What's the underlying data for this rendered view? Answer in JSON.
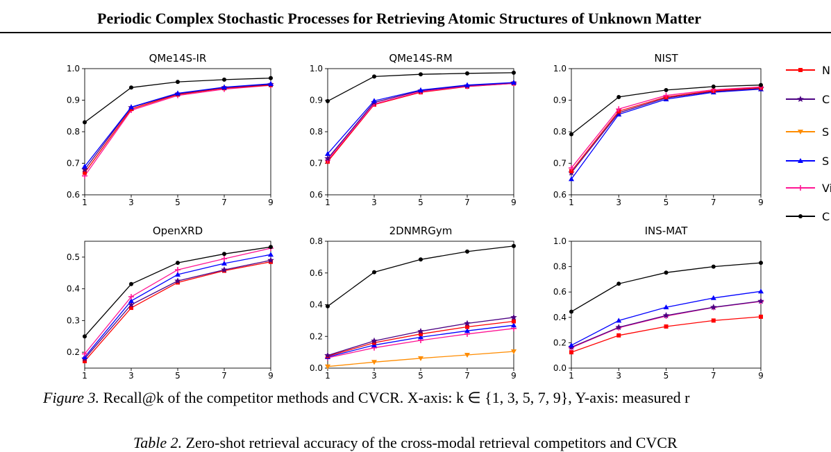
{
  "header": {
    "title": "Periodic Complex Stochastic Processes for Retrieving Atomic Structures of Unknown Matter"
  },
  "caption": {
    "label": "Figure 3.",
    "text": "Recall@k of the competitor methods and CVCR. X-axis: k ∈ {1, 3, 5, 7, 9}, Y-axis: measured r"
  },
  "table_caption": {
    "label": "Table 2.",
    "text": "Zero-shot retrieval accuracy of the cross-modal retrieval competitors and CVCR"
  },
  "legend": [
    {
      "label": "N",
      "color": "#ff0000",
      "marker": "square"
    },
    {
      "label": "C",
      "color": "#4b0082",
      "marker": "star"
    },
    {
      "label": "S",
      "color": "#ff8c00",
      "marker": "tri-down"
    },
    {
      "label": "S",
      "color": "#0000ff",
      "marker": "tri-up"
    },
    {
      "label": "Vi",
      "color": "#ff1493",
      "marker": "plus"
    },
    {
      "label": "C",
      "color": "#000000",
      "marker": "circle"
    }
  ],
  "chart_data": [
    {
      "type": "line",
      "title": "QMe14S-IR",
      "x": [
        1,
        3,
        5,
        7,
        9
      ],
      "ylim": [
        0.6,
        1.0
      ],
      "yticks": [
        "0.6",
        "0.7",
        "0.8",
        "0.9",
        "1.0"
      ],
      "series": [
        {
          "legend_index": 5,
          "color": "#000000",
          "marker": "circle",
          "values": [
            0.83,
            0.94,
            0.958,
            0.965,
            0.97
          ]
        },
        {
          "legend_index": 3,
          "color": "#0000ff",
          "marker": "tri-up",
          "values": [
            0.69,
            0.878,
            0.922,
            0.941,
            0.952
          ]
        },
        {
          "legend_index": 1,
          "color": "#4b0082",
          "marker": "star",
          "values": [
            0.68,
            0.877,
            0.92,
            0.94,
            0.95
          ]
        },
        {
          "legend_index": 0,
          "color": "#ff0000",
          "marker": "square",
          "values": [
            0.67,
            0.872,
            0.918,
            0.938,
            0.948
          ]
        },
        {
          "legend_index": 4,
          "color": "#ff1493",
          "marker": "plus",
          "values": [
            0.66,
            0.868,
            0.915,
            0.935,
            0.947
          ]
        }
      ]
    },
    {
      "type": "line",
      "title": "QMe14S-RM",
      "x": [
        1,
        3,
        5,
        7,
        9
      ],
      "ylim": [
        0.6,
        1.0
      ],
      "yticks": [
        "0.6",
        "0.7",
        "0.8",
        "0.9",
        "1.0"
      ],
      "series": [
        {
          "legend_index": 5,
          "color": "#000000",
          "marker": "circle",
          "values": [
            0.897,
            0.975,
            0.982,
            0.985,
            0.987
          ]
        },
        {
          "legend_index": 3,
          "color": "#0000ff",
          "marker": "tri-up",
          "values": [
            0.73,
            0.898,
            0.932,
            0.948,
            0.956
          ]
        },
        {
          "legend_index": 1,
          "color": "#4b0082",
          "marker": "star",
          "values": [
            0.715,
            0.893,
            0.93,
            0.946,
            0.955
          ]
        },
        {
          "legend_index": 4,
          "color": "#ff1493",
          "marker": "plus",
          "values": [
            0.71,
            0.888,
            0.927,
            0.944,
            0.953
          ]
        },
        {
          "legend_index": 0,
          "color": "#ff0000",
          "marker": "square",
          "values": [
            0.705,
            0.886,
            0.925,
            0.943,
            0.953
          ]
        }
      ]
    },
    {
      "type": "line",
      "title": "NIST",
      "x": [
        1,
        3,
        5,
        7,
        9
      ],
      "ylim": [
        0.6,
        1.0
      ],
      "yticks": [
        "0.6",
        "0.7",
        "0.8",
        "0.9",
        "1.0"
      ],
      "series": [
        {
          "legend_index": 5,
          "color": "#000000",
          "marker": "circle",
          "values": [
            0.792,
            0.91,
            0.932,
            0.943,
            0.948
          ]
        },
        {
          "legend_index": 4,
          "color": "#ff1493",
          "marker": "plus",
          "values": [
            0.685,
            0.872,
            0.915,
            0.933,
            0.942
          ]
        },
        {
          "legend_index": 0,
          "color": "#ff0000",
          "marker": "square",
          "values": [
            0.675,
            0.865,
            0.91,
            0.93,
            0.94
          ]
        },
        {
          "legend_index": 1,
          "color": "#4b0082",
          "marker": "star",
          "values": [
            0.67,
            0.86,
            0.907,
            0.928,
            0.937
          ]
        },
        {
          "legend_index": 3,
          "color": "#0000ff",
          "marker": "tri-up",
          "values": [
            0.65,
            0.855,
            0.903,
            0.925,
            0.935
          ]
        }
      ]
    },
    {
      "type": "line",
      "title": "OpenXRD",
      "x": [
        1,
        3,
        5,
        7,
        9
      ],
      "ylim": [
        0.15,
        0.55
      ],
      "yticks": [
        "0.2",
        "0.3",
        "0.4",
        "0.5"
      ],
      "ytick_values": [
        0.2,
        0.3,
        0.4,
        0.5
      ],
      "series": [
        {
          "legend_index": 5,
          "color": "#000000",
          "marker": "circle",
          "values": [
            0.25,
            0.415,
            0.482,
            0.51,
            0.532
          ]
        },
        {
          "legend_index": 4,
          "color": "#ff1493",
          "marker": "plus",
          "values": [
            0.195,
            0.375,
            0.46,
            0.495,
            0.528
          ]
        },
        {
          "legend_index": 3,
          "color": "#0000ff",
          "marker": "tri-up",
          "values": [
            0.185,
            0.362,
            0.445,
            0.48,
            0.508
          ]
        },
        {
          "legend_index": 1,
          "color": "#4b0082",
          "marker": "star",
          "values": [
            0.18,
            0.35,
            0.425,
            0.46,
            0.49
          ]
        },
        {
          "legend_index": 0,
          "color": "#ff0000",
          "marker": "square",
          "values": [
            0.172,
            0.34,
            0.42,
            0.457,
            0.485
          ]
        }
      ]
    },
    {
      "type": "line",
      "title": "2DNMRGym",
      "x": [
        1,
        3,
        5,
        7,
        9
      ],
      "ylim": [
        0.0,
        0.8
      ],
      "yticks": [
        "0.0",
        "0.2",
        "0.4",
        "0.6",
        "0.8"
      ],
      "series": [
        {
          "legend_index": 5,
          "color": "#000000",
          "marker": "circle",
          "values": [
            0.39,
            0.605,
            0.685,
            0.735,
            0.77
          ]
        },
        {
          "legend_index": 1,
          "color": "#4b0082",
          "marker": "star",
          "values": [
            0.08,
            0.172,
            0.232,
            0.282,
            0.32
          ]
        },
        {
          "legend_index": 0,
          "color": "#ff0000",
          "marker": "square",
          "values": [
            0.075,
            0.16,
            0.215,
            0.26,
            0.295
          ]
        },
        {
          "legend_index": 3,
          "color": "#0000ff",
          "marker": "tri-up",
          "values": [
            0.07,
            0.145,
            0.195,
            0.235,
            0.27
          ]
        },
        {
          "legend_index": 4,
          "color": "#ff1493",
          "marker": "plus",
          "values": [
            0.065,
            0.128,
            0.175,
            0.215,
            0.25
          ]
        },
        {
          "legend_index": 2,
          "color": "#ff8c00",
          "marker": "tri-down",
          "values": [
            0.01,
            0.038,
            0.062,
            0.083,
            0.105
          ]
        }
      ]
    },
    {
      "type": "line",
      "title": "INS-MAT",
      "x": [
        1,
        3,
        5,
        7,
        9
      ],
      "ylim": [
        0.0,
        1.0
      ],
      "yticks": [
        "0.0",
        "0.2",
        "0.4",
        "0.6",
        "0.8",
        "1.0"
      ],
      "series": [
        {
          "legend_index": 5,
          "color": "#000000",
          "marker": "circle",
          "values": [
            0.445,
            0.665,
            0.753,
            0.8,
            0.83
          ]
        },
        {
          "legend_index": 3,
          "color": "#0000ff",
          "marker": "tri-up",
          "values": [
            0.18,
            0.375,
            0.48,
            0.553,
            0.605
          ]
        },
        {
          "legend_index": 1,
          "color": "#4b0082",
          "marker": "star",
          "values": [
            0.165,
            0.322,
            0.415,
            0.48,
            0.528
          ]
        },
        {
          "legend_index": 4,
          "color": "#ff1493",
          "marker": "plus",
          "values": [
            0.16,
            0.318,
            0.41,
            0.478,
            0.525
          ]
        },
        {
          "legend_index": 0,
          "color": "#ff0000",
          "marker": "square",
          "values": [
            0.125,
            0.258,
            0.328,
            0.375,
            0.405
          ]
        }
      ]
    }
  ]
}
